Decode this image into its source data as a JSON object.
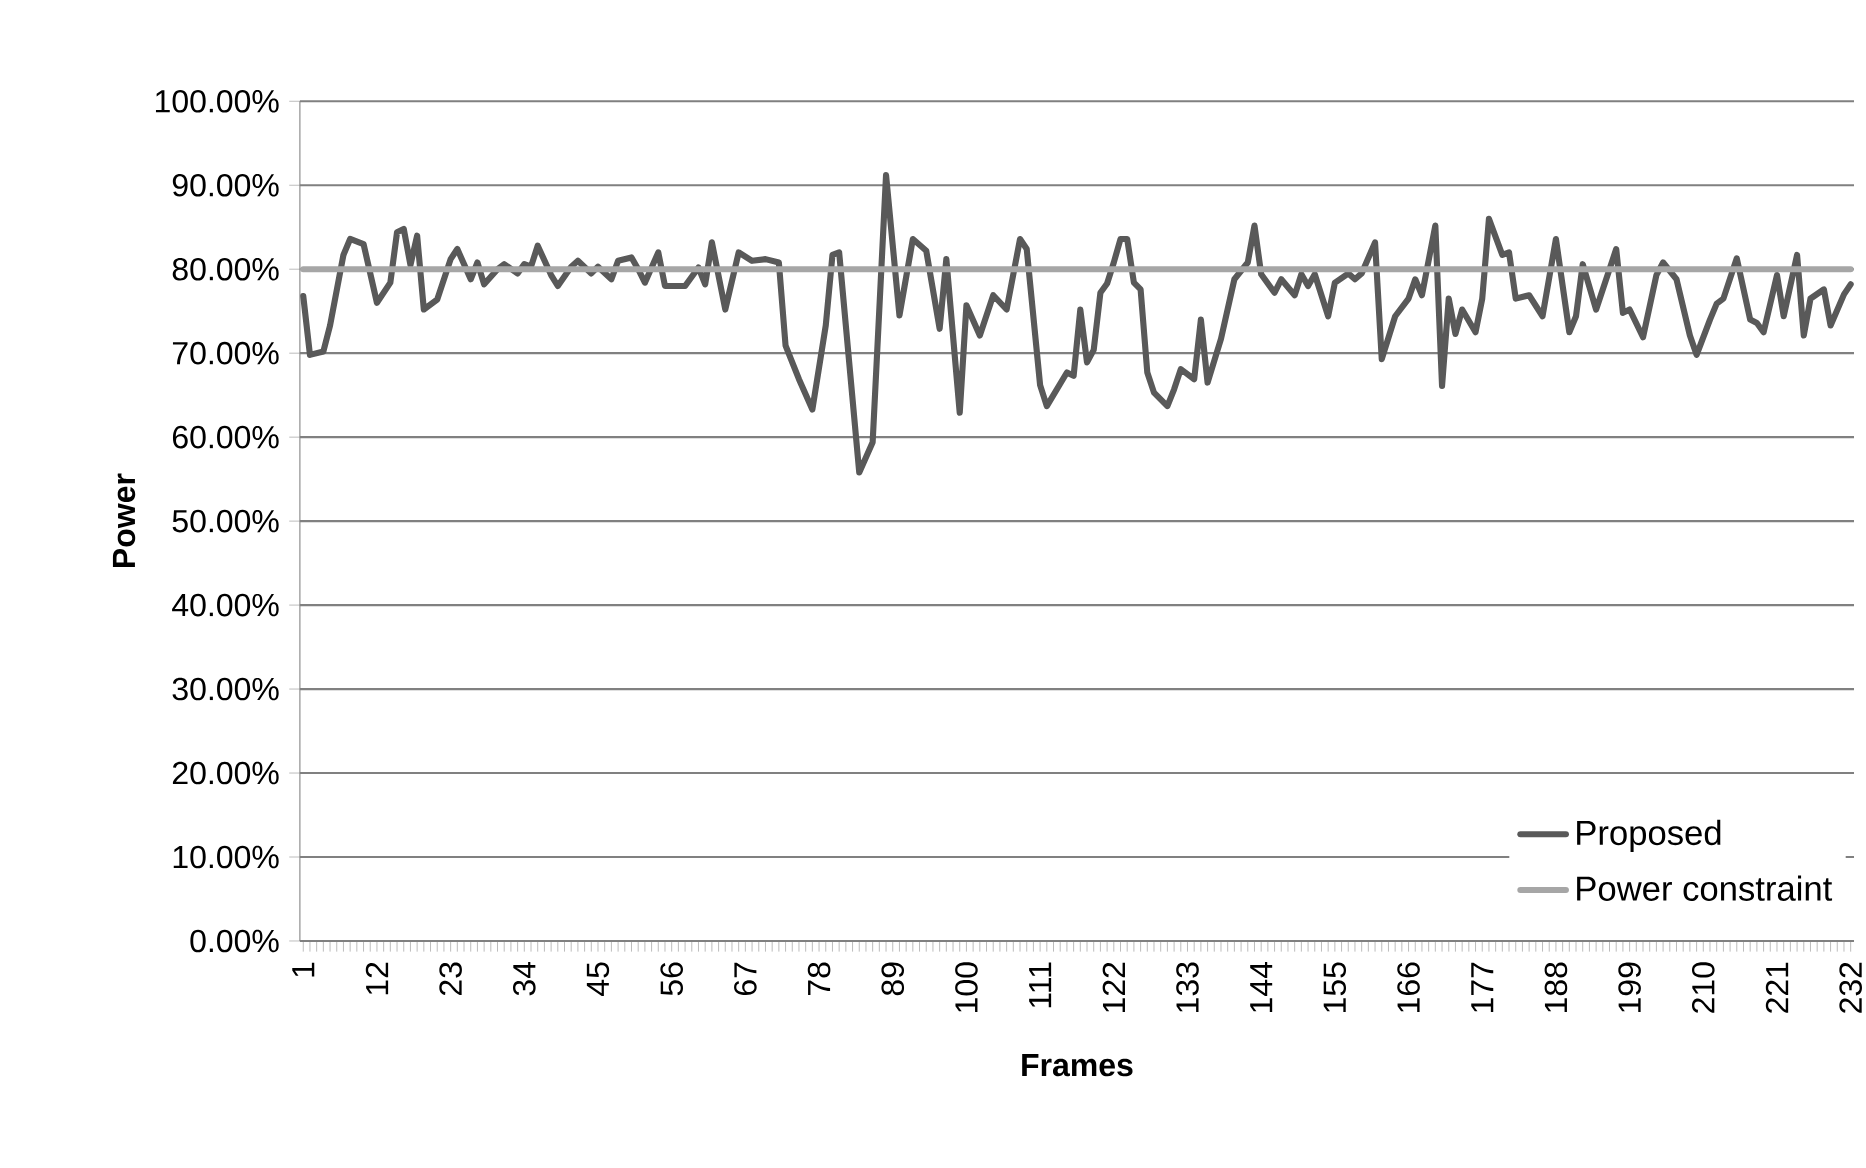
{
  "chart_data": {
    "type": "line",
    "xlabel": "Frames",
    "ylabel": "Power",
    "xlim": [
      0.5,
      232.5
    ],
    "xticks": [
      1,
      12,
      23,
      34,
      45,
      56,
      67,
      78,
      89,
      100,
      111,
      122,
      133,
      144,
      155,
      166,
      177,
      188,
      199,
      210,
      221,
      232
    ],
    "ylim": [
      0,
      100
    ],
    "yticks": [
      {
        "value": 0,
        "label": "0.00%"
      },
      {
        "value": 10,
        "label": "10.00%"
      },
      {
        "value": 20,
        "label": "20.00%"
      },
      {
        "value": 30,
        "label": "30.00%"
      },
      {
        "value": 40,
        "label": "40.00%"
      },
      {
        "value": 50,
        "label": "50.00%"
      },
      {
        "value": 60,
        "label": "60.00%"
      },
      {
        "value": 70,
        "label": "70.00%"
      },
      {
        "value": 80,
        "label": "80.00%"
      },
      {
        "value": 90,
        "label": "90.00%"
      },
      {
        "value": 100,
        "label": "100.00%"
      }
    ],
    "grid": "y",
    "legend": "bottom right",
    "marker": "none",
    "line_style": "solid",
    "series": [
      {
        "name": "Proposed",
        "color": "#595959",
        "x": [
          1,
          2,
          4,
          5,
          7,
          8,
          10,
          12,
          14,
          15,
          16,
          17,
          18,
          19,
          21,
          23,
          24,
          26,
          27,
          28,
          30,
          31,
          33,
          34,
          35,
          36,
          38,
          39,
          41,
          42,
          44,
          45,
          47,
          48,
          50,
          51,
          52,
          54,
          55,
          58,
          60,
          61,
          62,
          64,
          66,
          68,
          70,
          72,
          73,
          75,
          77,
          79,
          80,
          81,
          84,
          86,
          88,
          90,
          92,
          94,
          96,
          97,
          99,
          100,
          102,
          104,
          106,
          108,
          109,
          111,
          112,
          115,
          116,
          117,
          118,
          119,
          120,
          121,
          122,
          123,
          124,
          125,
          126,
          127,
          128,
          130,
          131,
          132,
          134,
          135,
          136,
          138,
          140,
          142,
          143,
          144,
          146,
          147,
          149,
          150,
          151,
          152,
          154,
          155,
          157,
          158,
          159,
          161,
          162,
          164,
          166,
          167,
          168,
          170,
          171,
          172,
          173,
          174,
          176,
          177,
          178,
          180,
          181,
          182,
          184,
          186,
          188,
          190,
          191,
          192,
          194,
          197,
          198,
          199,
          201,
          203,
          204,
          206,
          208,
          209,
          211,
          212,
          213,
          215,
          217,
          218,
          219,
          221,
          222,
          224,
          225,
          226,
          228,
          229,
          231,
          232
        ],
        "values": [
          76.8,
          69.8,
          70.2,
          73.3,
          81.7,
          83.6,
          83,
          76,
          78.4,
          84.4,
          84.8,
          80.5,
          84,
          75.2,
          76.4,
          81.2,
          82.4,
          78.8,
          80.8,
          78.2,
          80,
          80.6,
          79.5,
          80.6,
          80.3,
          82.8,
          79.3,
          78,
          80.3,
          81,
          79.5,
          80.3,
          78.8,
          81,
          81.4,
          80,
          78.4,
          82,
          78,
          78,
          80.2,
          78.2,
          83.2,
          75.2,
          82,
          81,
          81.2,
          80.8,
          70.9,
          66.9,
          63.3,
          73.3,
          81.7,
          82,
          55.8,
          59.4,
          91.2,
          74.5,
          83.6,
          82.2,
          72.9,
          81.2,
          62.9,
          75.7,
          72.1,
          76.9,
          75.2,
          83.6,
          82.4,
          66.2,
          63.7,
          67.7,
          67.3,
          75.2,
          68.9,
          70.4,
          77.2,
          78.3,
          80.8,
          83.6,
          83.6,
          78.4,
          77.6,
          67.7,
          65.3,
          63.7,
          65.7,
          68.1,
          66.9,
          74,
          66.5,
          71.7,
          78.8,
          80.8,
          85.2,
          79.4,
          77.2,
          78.8,
          76.9,
          79.4,
          78,
          79.4,
          74.4,
          78.4,
          79.5,
          78.8,
          79.5,
          83.2,
          69.3,
          74.4,
          76.5,
          78.8,
          76.9,
          85.2,
          66.1,
          76.5,
          72.3,
          75.2,
          72.5,
          76.5,
          86,
          81.7,
          82,
          76.5,
          76.9,
          74.4,
          83.6,
          72.5,
          74.4,
          80.6,
          75.2,
          82.4,
          74.8,
          75.2,
          71.9,
          79.3,
          80.8,
          78.8,
          72.1,
          69.8,
          74,
          75.9,
          76.5,
          81.3,
          74,
          73.6,
          72.5,
          79.3,
          74.4,
          81.7,
          72.1,
          76.5,
          77.6,
          73.3,
          77,
          78.2
        ]
      },
      {
        "name": "Power constraint",
        "color": "#a6a6a6",
        "x": [
          1,
          232
        ],
        "values": [
          80,
          80
        ]
      }
    ]
  }
}
